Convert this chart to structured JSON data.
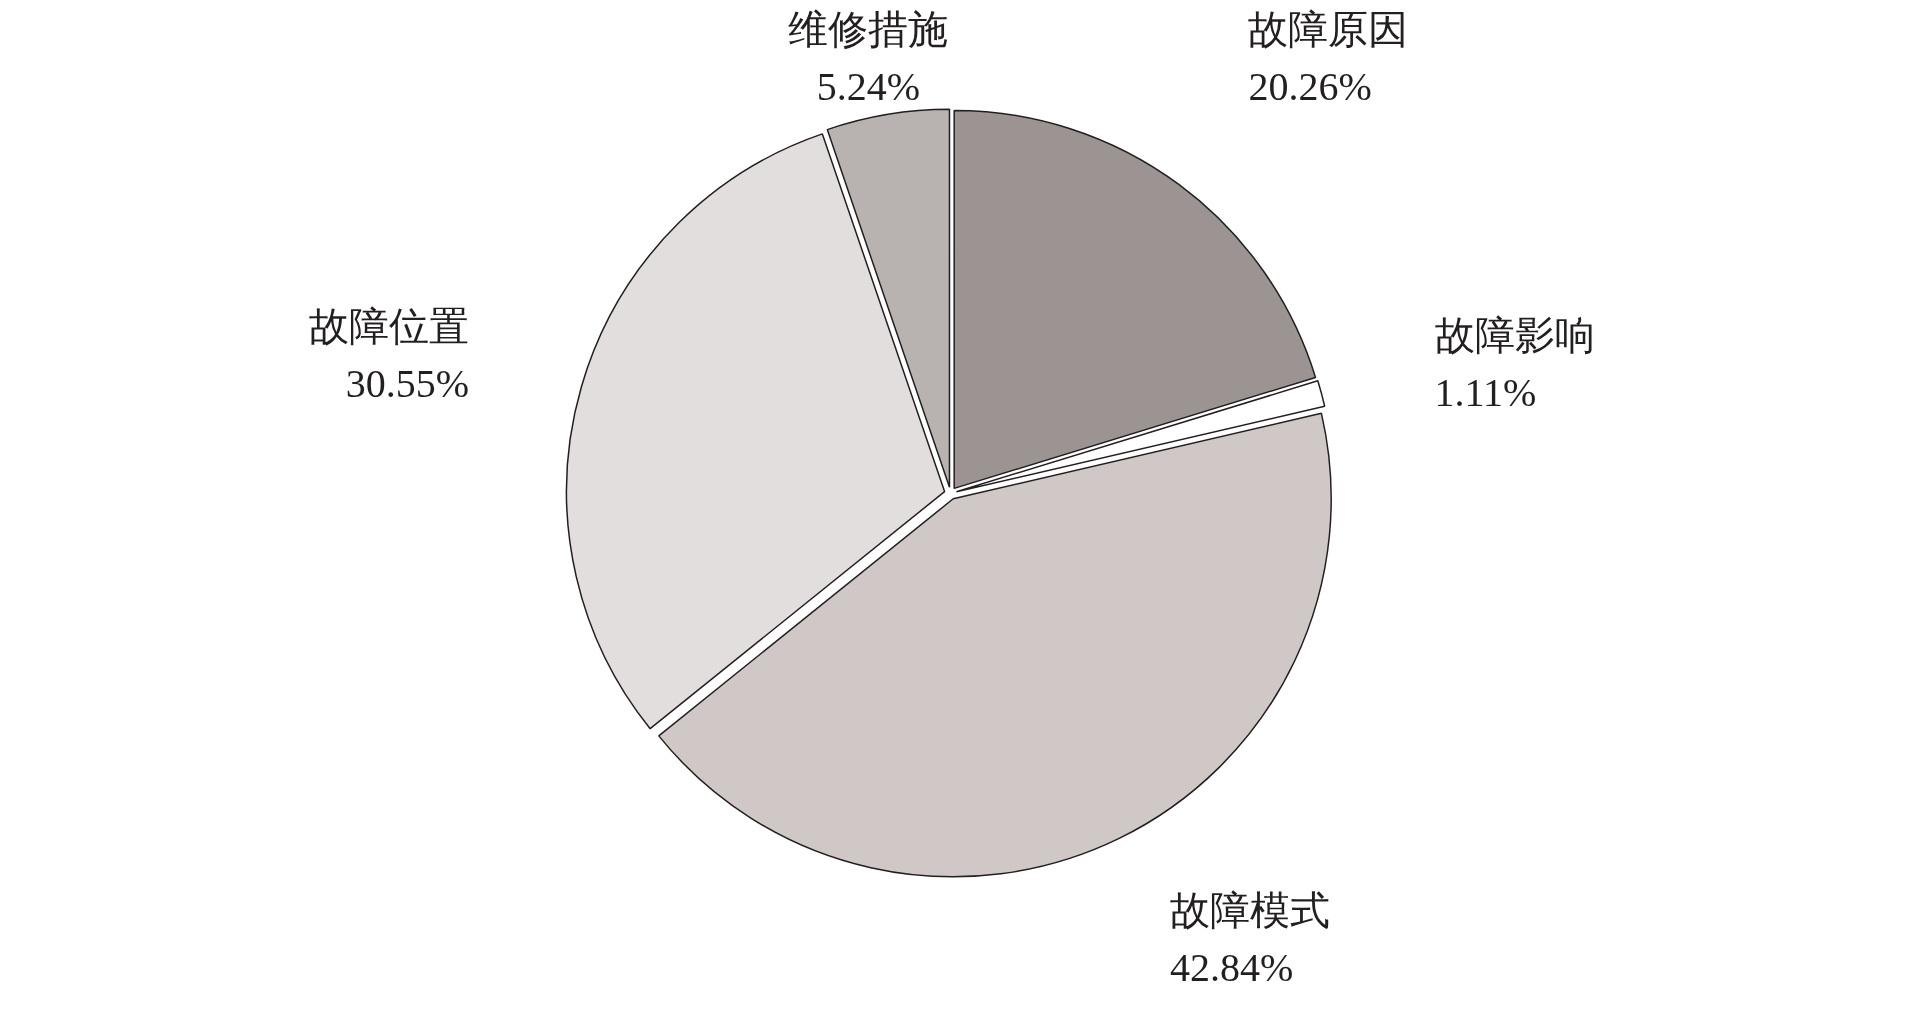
{
  "chart_data": {
    "type": "pie",
    "categories": [
      "故障原因",
      "故障影响",
      "故障模式",
      "故障位置",
      "维修措施"
    ],
    "values": [
      20.26,
      1.11,
      42.84,
      30.55,
      5.24
    ],
    "value_labels": [
      "20.26%",
      "1.11%",
      "42.84%",
      "30.55%",
      "5.24%"
    ],
    "colors": [
      "#9b9492",
      "#ffffff",
      "#cfc8c6",
      "#e2dedd",
      "#b8b2b0"
    ]
  }
}
